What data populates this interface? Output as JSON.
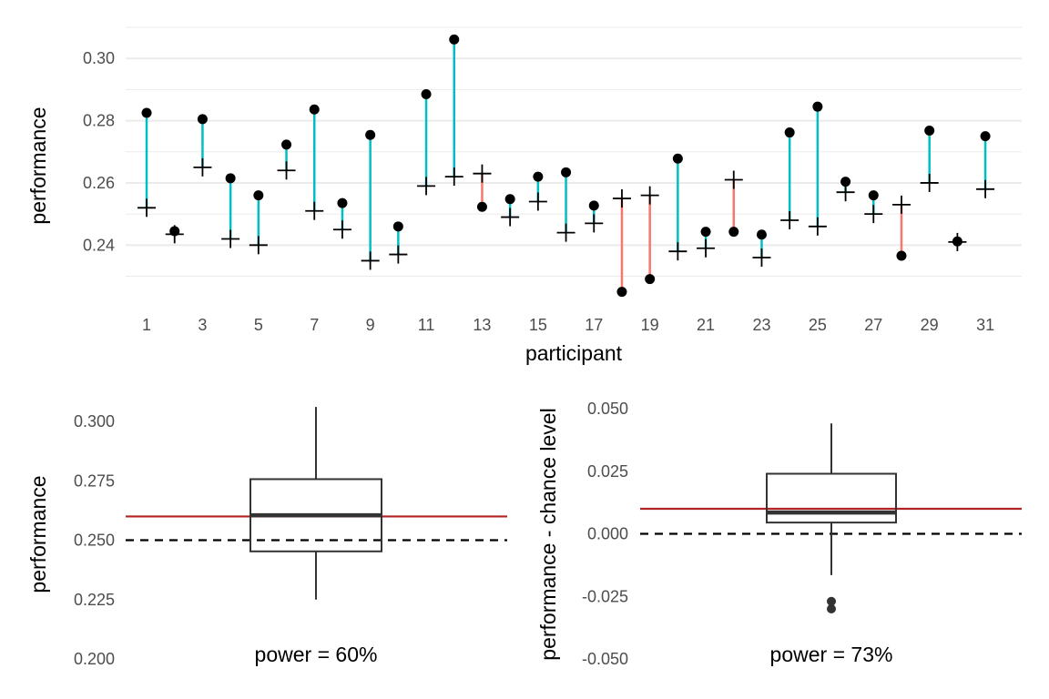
{
  "colors": {
    "above": "#00BFC4",
    "below": "#F8766D",
    "reference": "#B22222",
    "point": "#000000",
    "box": "#333333",
    "grid": "#EBEBEB"
  },
  "chart_data": [
    {
      "type": "scatter",
      "name": "participant-performance",
      "xlabel": "participant",
      "ylabel": "performance",
      "xlim": [
        0.25,
        32.3
      ],
      "ylim": [
        0.2205,
        0.31
      ],
      "ymajor": [
        0.24,
        0.26,
        0.28,
        0.3
      ],
      "ymajor_labels": [
        "0.24",
        "0.26",
        "0.28",
        "0.30"
      ],
      "yminor": [
        0.23,
        0.25,
        0.27,
        0.29,
        0.31
      ],
      "xticks": [
        1,
        3,
        5,
        7,
        9,
        11,
        13,
        15,
        17,
        19,
        21,
        23,
        25,
        27,
        29,
        31
      ],
      "xtick_labels": [
        "1",
        "3",
        "5",
        "7",
        "9",
        "11",
        "13",
        "15",
        "17",
        "19",
        "21",
        "23",
        "25",
        "27",
        "29",
        "31"
      ],
      "participants": [
        1,
        2,
        3,
        4,
        5,
        6,
        7,
        8,
        9,
        10,
        11,
        12,
        13,
        14,
        15,
        16,
        17,
        18,
        19,
        20,
        21,
        22,
        23,
        24,
        25,
        26,
        27,
        28,
        29,
        30,
        31
      ],
      "performance": [
        0.2825,
        0.2445,
        0.2805,
        0.2615,
        0.256,
        0.2723,
        0.2836,
        0.2535,
        0.2754,
        0.246,
        0.2885,
        0.3061,
        0.2523,
        0.2548,
        0.262,
        0.2634,
        0.2527,
        0.225,
        0.2291,
        0.2678,
        0.2443,
        0.2443,
        0.2434,
        0.2762,
        0.2845,
        0.2604,
        0.256,
        0.2366,
        0.2768,
        0.2412,
        0.275
      ],
      "chance_level": [
        0.252,
        0.2435,
        0.265,
        0.242,
        0.24,
        0.264,
        0.251,
        0.245,
        0.235,
        0.237,
        0.259,
        0.262,
        0.263,
        0.249,
        0.254,
        0.244,
        0.247,
        0.255,
        0.256,
        0.238,
        0.239,
        0.261,
        0.236,
        0.248,
        0.246,
        0.257,
        0.25,
        0.253,
        0.26,
        0.241,
        0.258
      ]
    },
    {
      "type": "box",
      "name": "performance-box",
      "ylabel": "performance",
      "ylim": [
        0.2,
        0.305
      ],
      "yticks": [
        0.2,
        0.225,
        0.25,
        0.275,
        0.3
      ],
      "ytick_labels": [
        "0.200",
        "0.225",
        "0.250",
        "0.275",
        "0.300"
      ],
      "whisker_low": 0.225,
      "q1": 0.2453,
      "median": 0.2605,
      "q3": 0.2757,
      "whisker_high": 0.3061,
      "outliers": [],
      "reference_line": 0.26,
      "chance_line": 0.25,
      "annotation": "power = 60%"
    },
    {
      "type": "box",
      "name": "difference-box",
      "ylabel": "performance - chance level",
      "ylim": [
        -0.05,
        0.05
      ],
      "yticks": [
        -0.05,
        -0.025,
        0,
        0.025,
        0.05
      ],
      "ytick_labels": [
        "-0.050",
        "-0.025",
        "0.000",
        "0.025",
        "0.050"
      ],
      "whisker_low": -0.0165,
      "q1": 0.0045,
      "median": 0.0085,
      "q3": 0.024,
      "whisker_high": 0.0441,
      "outliers": [
        -0.027,
        -0.03
      ],
      "reference_line": 0.01,
      "chance_line": 0.0,
      "annotation": "power = 73%"
    }
  ]
}
